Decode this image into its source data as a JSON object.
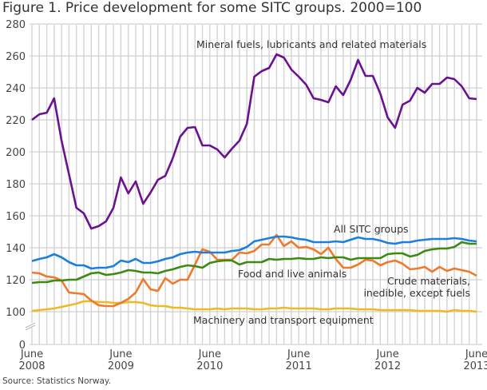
{
  "title": "Figure 1. Price development for some SITC groups. 2000=100",
  "source": "Source: Statistics Norway.",
  "chart_data": {
    "type": "line",
    "title": "Figure 1. Price development for some SITC groups. 2000=100",
    "xlabel": "",
    "ylabel": "",
    "x_start": "June 2008",
    "x_end": "June 2013",
    "frequency": "monthly",
    "x_tick_labels": [
      [
        "June",
        "2008"
      ],
      [
        "June",
        "2009"
      ],
      [
        "June",
        "2010"
      ],
      [
        "June",
        "2011"
      ],
      [
        "June",
        "2012"
      ],
      [
        "June",
        "2013"
      ]
    ],
    "y_ticks": [
      0,
      100,
      120,
      140,
      160,
      180,
      200,
      220,
      240,
      260,
      280
    ],
    "ylim": [
      0,
      280
    ],
    "y_axis_break": "between 0 and 100",
    "grid": true,
    "series": [
      {
        "name": "Mineral fuels, lubricants and related materials",
        "color": "#6b1190",
        "values": [
          220,
          223.5,
          224.5,
          233.5,
          207,
          186,
          165,
          161.5,
          152,
          153.5,
          156.5,
          165,
          184,
          174,
          181.5,
          167.5,
          174.5,
          182.5,
          185,
          196,
          209.5,
          215,
          215.5,
          204,
          204,
          201.5,
          196.5,
          202,
          207,
          217.5,
          247,
          250.5,
          252.5,
          261,
          259,
          251.5,
          247,
          242,
          233.5,
          232.5,
          231,
          241,
          235.5,
          245,
          257.5,
          247.5,
          247.5,
          236.5,
          221.5,
          215,
          229.5,
          232,
          240,
          237,
          242.5,
          242.5,
          246.5,
          245.5,
          241,
          233.5,
          233
        ]
      },
      {
        "name": "All SITC groups",
        "color": "#1b7fdb",
        "values": [
          131.7,
          133,
          134,
          136,
          134,
          131,
          129,
          129,
          127,
          127.5,
          127.5,
          128.5,
          132,
          131,
          133,
          130.5,
          130.5,
          131.5,
          133,
          134,
          136,
          137,
          137.5,
          137,
          137,
          137,
          137,
          138,
          138.5,
          140.5,
          144,
          145,
          146,
          147,
          147,
          146.5,
          145.5,
          145,
          143.5,
          143.5,
          143.5,
          144,
          143.5,
          145,
          146.5,
          145.5,
          145.5,
          144.5,
          143,
          142.5,
          143.5,
          143.5,
          144.5,
          145,
          145.5,
          145.5,
          145.5,
          146,
          145.5,
          144.5,
          144
        ]
      },
      {
        "name": "Food and live animals",
        "color": "#3d8a12",
        "values": [
          118,
          118.5,
          118.5,
          119.5,
          119.5,
          120,
          120,
          122,
          124,
          124.5,
          123,
          123.5,
          124.5,
          126,
          125.5,
          124.5,
          124.5,
          124,
          125.5,
          126.5,
          128,
          129,
          128.5,
          127.5,
          130.5,
          131.5,
          132,
          132,
          129.5,
          131,
          131,
          131,
          133,
          132.5,
          133,
          133,
          133.5,
          133,
          133,
          134,
          133.5,
          134,
          134,
          132.5,
          133.5,
          133.5,
          133.5,
          133.5,
          136,
          136.5,
          136.5,
          134.5,
          135.5,
          138,
          139,
          139.5,
          139.5,
          140.5,
          143.5,
          142.5,
          142.5
        ]
      },
      {
        "name": "Crude materials, inedible, except fuels",
        "color": "#f07a2c",
        "values": [
          124.5,
          124,
          122,
          121.5,
          119.5,
          112,
          111.5,
          111,
          107,
          104,
          103.5,
          103.5,
          105.5,
          108,
          112,
          120.5,
          114,
          113,
          121,
          117.5,
          120,
          120,
          129.5,
          139,
          137.5,
          132.5,
          132.5,
          132.5,
          137,
          136.5,
          138,
          142,
          142,
          148,
          141,
          144,
          140,
          140.5,
          139,
          136,
          140,
          133,
          127.5,
          127.5,
          129.5,
          132.5,
          132,
          129,
          131,
          132,
          130,
          126.5,
          127,
          128,
          125,
          128,
          125.5,
          127,
          126,
          125,
          122.5
        ]
      },
      {
        "name": "Machinery and transport equipment",
        "color": "#f0b824",
        "values": [
          100.5,
          101,
          101.5,
          102,
          103,
          104,
          105,
          106.5,
          106.5,
          106,
          106,
          105.5,
          105.5,
          106,
          106,
          105.5,
          104,
          103.5,
          103.5,
          102.5,
          102.5,
          102,
          101.5,
          101.5,
          101.5,
          102,
          101.5,
          102,
          102,
          102,
          101.5,
          101.5,
          102,
          102,
          102.5,
          102,
          102,
          102,
          102,
          101.5,
          101.5,
          102,
          102,
          102,
          101.5,
          101.5,
          101.5,
          101,
          101,
          101,
          101,
          101,
          100.5,
          100.5,
          100.5,
          100.5,
          100,
          101,
          100.5,
          100.5,
          100
        ]
      }
    ],
    "series_labels": [
      "Mineral fuels, lubricants and related materials",
      "All SITC groups",
      "Food and live animals",
      [
        "Crude materials,",
        "inedible, except fuels"
      ],
      "Machinery and transport equipment"
    ]
  }
}
